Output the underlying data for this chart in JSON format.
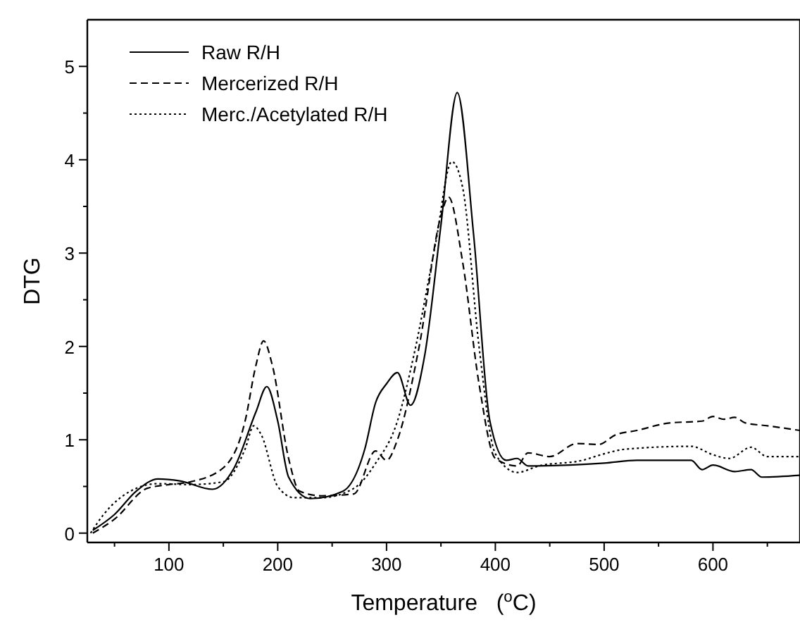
{
  "chart_data": {
    "type": "line",
    "xlabel": "Temperature   ($^{o}$C)",
    "ylabel": "DTG",
    "xlim": [
      25,
      680
    ],
    "ylim": [
      -0.1,
      5.5
    ],
    "xticks": [
      {
        "value": 50,
        "label": null
      },
      100,
      {
        "value": 150,
        "label": null
      },
      200,
      {
        "value": 250,
        "label": null
      },
      300,
      {
        "value": 350,
        "label": null
      },
      400,
      {
        "value": 450,
        "label": null
      },
      500,
      {
        "value": 550,
        "label": null
      },
      600,
      {
        "value": 650,
        "label": null
      }
    ],
    "yticks": [
      0,
      {
        "value": 0.5,
        "label": null
      },
      1,
      {
        "value": 1.5,
        "label": null
      },
      2,
      {
        "value": 2.5,
        "label": null
      },
      3,
      {
        "value": 3.5,
        "label": null
      },
      4,
      {
        "value": 4.5,
        "label": null
      },
      5
    ],
    "grid": false,
    "legend": "top left",
    "marker": "none",
    "series": [
      {
        "name": "Raw R/H",
        "color": "#000000",
        "line_style": "solid",
        "x": [
          30,
          50,
          70,
          90,
          110,
          140,
          160,
          180,
          190,
          200,
          210,
          230,
          260,
          280,
          290,
          300,
          310,
          322,
          335,
          350,
          365,
          380,
          395,
          410,
          420,
          430,
          500,
          530,
          580,
          590,
          600,
          620,
          635,
          645,
          680
        ],
        "values": [
          0.03,
          0.2,
          0.45,
          0.58,
          0.56,
          0.47,
          0.7,
          1.3,
          1.57,
          1.2,
          0.6,
          0.37,
          0.45,
          0.9,
          1.4,
          1.6,
          1.72,
          1.37,
          1.9,
          3.3,
          4.72,
          3.2,
          1.2,
          0.78,
          0.8,
          0.72,
          0.75,
          0.78,
          0.78,
          0.68,
          0.73,
          0.66,
          0.68,
          0.6,
          0.62
        ]
      },
      {
        "name": "Mercerized R/H",
        "color": "#000000",
        "line_style": "dashed",
        "x": [
          30,
          50,
          80,
          100,
          120,
          150,
          170,
          180,
          187,
          195,
          210,
          220,
          240,
          270,
          290,
          300,
          310,
          330,
          350,
          357,
          370,
          385,
          400,
          420,
          430,
          450,
          475,
          495,
          510,
          530,
          560,
          590,
          600,
          610,
          620,
          630,
          650,
          680
        ],
        "values": [
          0.0,
          0.15,
          0.48,
          0.52,
          0.55,
          0.7,
          1.2,
          1.8,
          2.06,
          1.8,
          0.8,
          0.45,
          0.4,
          0.42,
          0.88,
          0.78,
          1.0,
          2.0,
          3.4,
          3.6,
          2.9,
          1.6,
          0.8,
          0.72,
          0.86,
          0.82,
          0.96,
          0.95,
          1.05,
          1.1,
          1.18,
          1.2,
          1.25,
          1.22,
          1.24,
          1.18,
          1.15,
          1.1
        ]
      },
      {
        "name": "Merc./Acetylated R/H",
        "color": "#000000",
        "line_style": "dotted",
        "x": [
          28,
          40,
          70,
          90,
          120,
          150,
          170,
          178,
          185,
          200,
          215,
          240,
          270,
          290,
          310,
          325,
          345,
          360,
          370,
          385,
          400,
          420,
          440,
          480,
          500,
          520,
          580,
          600,
          615,
          635,
          650,
          680
        ],
        "values": [
          0.0,
          0.2,
          0.48,
          0.53,
          0.52,
          0.55,
          0.9,
          1.15,
          1.05,
          0.5,
          0.38,
          0.38,
          0.48,
          0.75,
          1.2,
          1.9,
          3.1,
          3.98,
          3.7,
          2.0,
          0.85,
          0.65,
          0.72,
          0.78,
          0.85,
          0.9,
          0.93,
          0.84,
          0.8,
          0.92,
          0.82,
          0.82
        ]
      }
    ]
  }
}
